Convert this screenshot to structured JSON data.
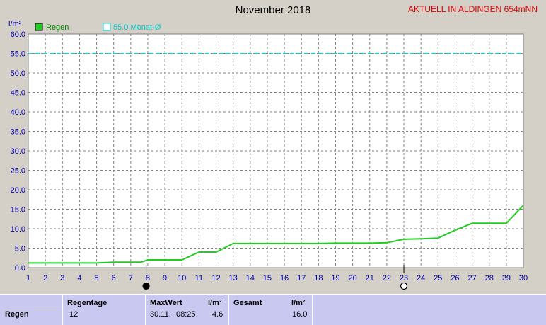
{
  "header": {
    "title": "November 2018",
    "location": "AKTUELL IN ALDINGEN 654mNN"
  },
  "legend": {
    "series_label": "Regen",
    "reference_label": "55.0 Monat-Ø"
  },
  "colors": {
    "background": "#d4d0c8",
    "plot_background": "#ffffff",
    "series": "#22cc22",
    "reference": "#00d8d8",
    "axis_text": "#0000aa",
    "location": "#e00000",
    "table_background": "#c8c8f0"
  },
  "chart_data": {
    "type": "line",
    "ylabel": "l/m²",
    "xlim": [
      1,
      30
    ],
    "ylim": [
      0,
      60
    ],
    "ytick_step": 5,
    "ytick_labels": [
      "0.0",
      "5.0",
      "10.0",
      "15.0",
      "20.0",
      "25.0",
      "30.0",
      "35.0",
      "40.0",
      "45.0",
      "50.0",
      "55.0",
      "60.0"
    ],
    "xtick_labels": [
      "1",
      "2",
      "3",
      "4",
      "5",
      "6",
      "7",
      "8",
      "9",
      "10",
      "11",
      "12",
      "13",
      "14",
      "15",
      "16",
      "17",
      "18",
      "19",
      "20",
      "21",
      "22",
      "23",
      "24",
      "25",
      "26",
      "27",
      "28",
      "29",
      "30"
    ],
    "grid": true,
    "reference_line": 55.0,
    "moon_phases": [
      {
        "day": 7.9,
        "phase": "new"
      },
      {
        "day": 23.0,
        "phase": "full"
      }
    ],
    "series": [
      {
        "name": "Regen",
        "points": [
          [
            1,
            1.2
          ],
          [
            2,
            1.2
          ],
          [
            3,
            1.2
          ],
          [
            4,
            1.2
          ],
          [
            5,
            1.2
          ],
          [
            6,
            1.4
          ],
          [
            7,
            1.4
          ],
          [
            7.6,
            1.4
          ],
          [
            8,
            2.0
          ],
          [
            10,
            2.0
          ],
          [
            11,
            4.0
          ],
          [
            12,
            4.0
          ],
          [
            13,
            6.2
          ],
          [
            14,
            6.2
          ],
          [
            15,
            6.2
          ],
          [
            16,
            6.2
          ],
          [
            17,
            6.2
          ],
          [
            18,
            6.2
          ],
          [
            19,
            6.3
          ],
          [
            20,
            6.3
          ],
          [
            21,
            6.3
          ],
          [
            22,
            6.4
          ],
          [
            23,
            7.3
          ],
          [
            24,
            7.4
          ],
          [
            25,
            7.6
          ],
          [
            26,
            9.6
          ],
          [
            27,
            11.4
          ],
          [
            28,
            11.4
          ],
          [
            29,
            11.4
          ],
          [
            30,
            16.0
          ]
        ]
      }
    ]
  },
  "table": {
    "columns": {
      "regentage": "Regentage",
      "maxwert": "MaxWert",
      "maxwert_unit": "l/m²",
      "gesamt": "Gesamt",
      "gesamt_unit": "l/m²"
    },
    "row": {
      "label": "Regen",
      "regentage": "12",
      "max_date": "30.11.",
      "max_time": "08:25",
      "max_value": "4.6",
      "gesamt": "16.0"
    }
  }
}
